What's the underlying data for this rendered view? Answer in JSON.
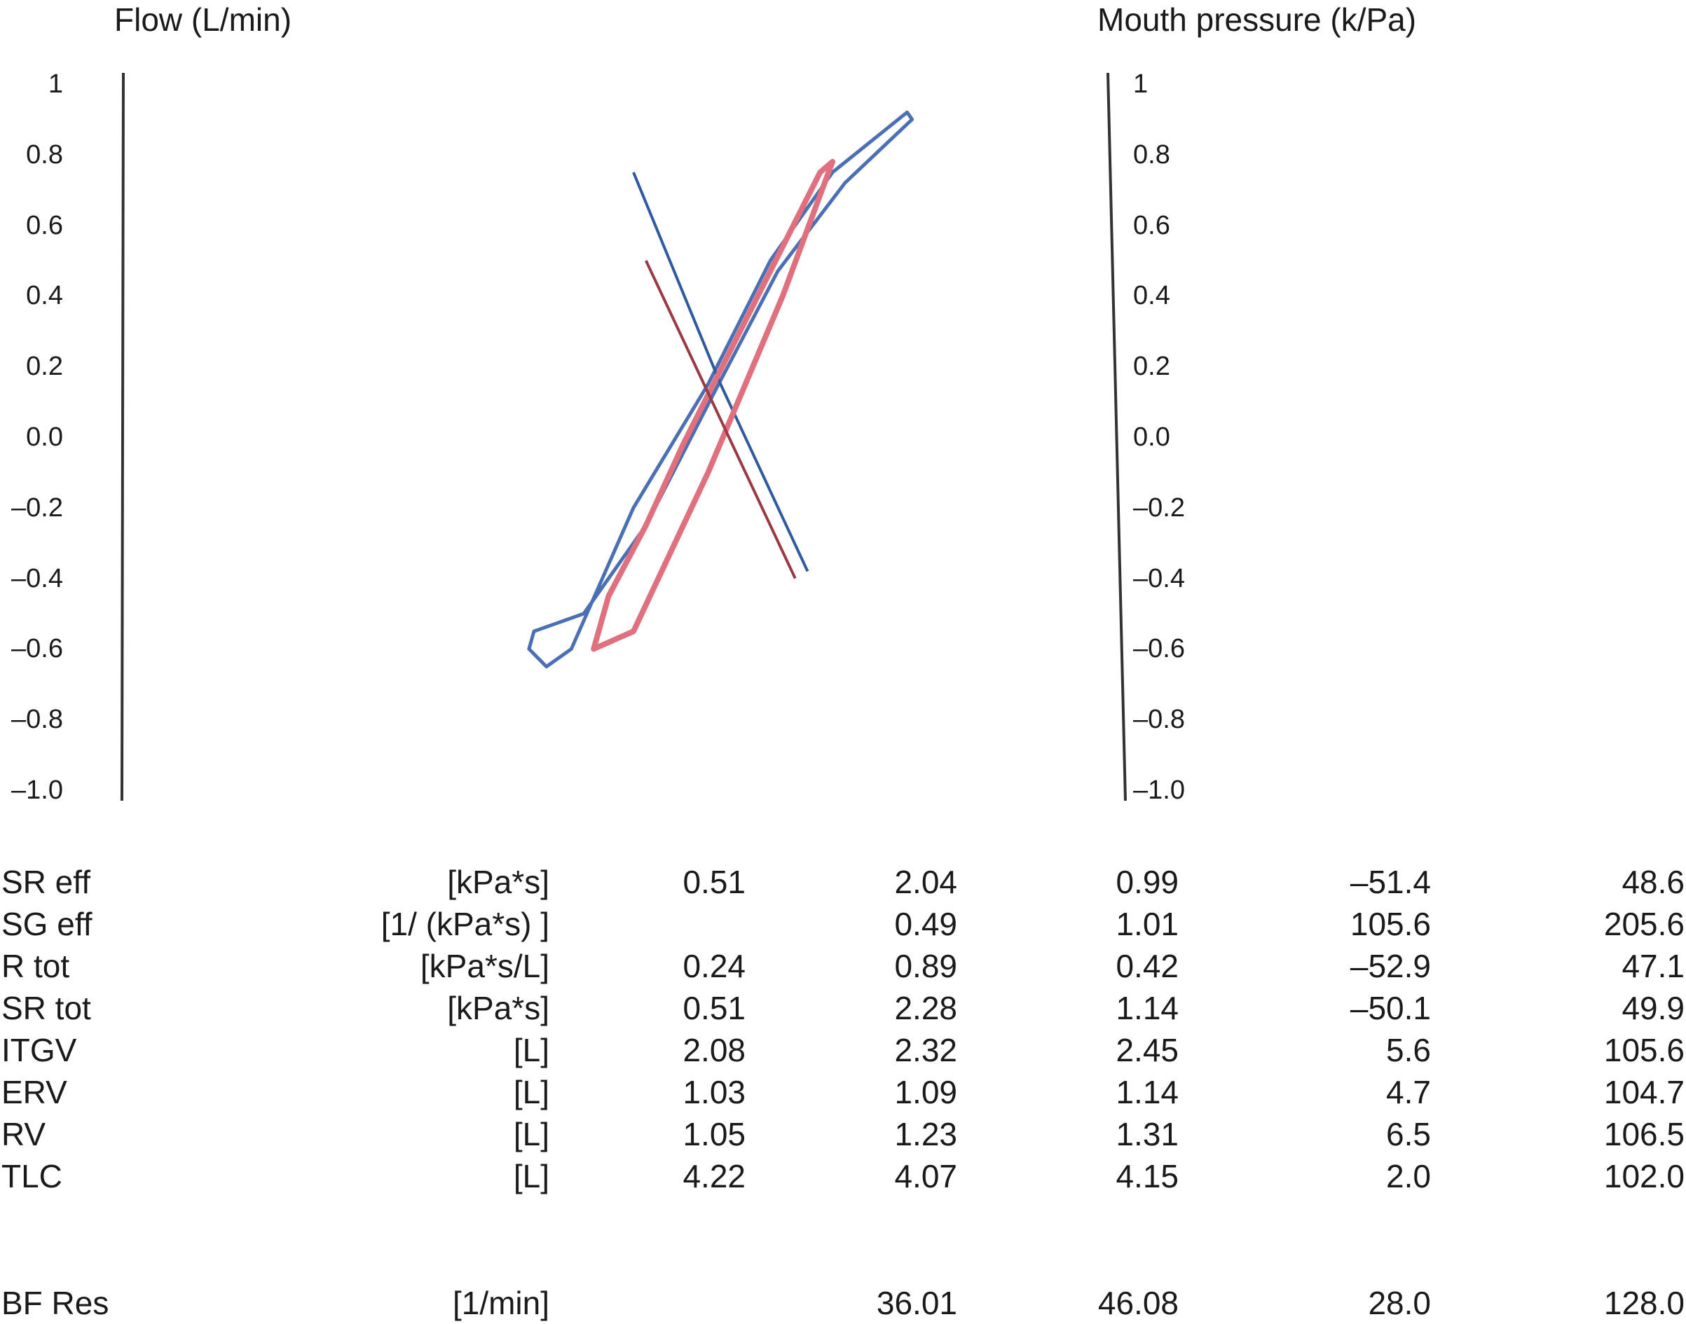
{
  "chart_data": {
    "type": "line",
    "left_axis": {
      "title": "Flow (L/min)",
      "ticks": [
        "1",
        "0.8",
        "0.6",
        "0.4",
        "0.2",
        "0.0",
        "–0.2",
        "–0.4",
        "–0.6",
        "–0.8",
        "–1.0"
      ],
      "ylim": [
        -1.0,
        1.0
      ]
    },
    "right_axis": {
      "title": "Mouth pressure (k/Pa)",
      "ticks": [
        "1",
        "0.8",
        "0.6",
        "0.4",
        "0.2",
        "0.0",
        "–0.2",
        "–0.4",
        "–0.6",
        "–0.8",
        "–1.0"
      ],
      "ylim": [
        -1.0,
        1.0
      ]
    },
    "series": [
      {
        "color": "#4a6fb5",
        "loop": [
          [
            -0.6,
            -0.55
          ],
          [
            -0.62,
            -0.6
          ],
          [
            -0.55,
            -0.65
          ],
          [
            -0.45,
            -0.6
          ],
          [
            -0.2,
            -0.2
          ],
          [
            0.1,
            0.15
          ],
          [
            0.35,
            0.5
          ],
          [
            0.6,
            0.75
          ],
          [
            0.9,
            0.92
          ],
          [
            0.92,
            0.9
          ],
          [
            0.65,
            0.72
          ],
          [
            0.38,
            0.47
          ],
          [
            0.12,
            0.12
          ],
          [
            -0.15,
            -0.25
          ],
          [
            -0.4,
            -0.5
          ],
          [
            -0.6,
            -0.55
          ]
        ],
        "line": [
          [
            -0.2,
            0.75
          ],
          [
            0.15,
            0.15
          ],
          [
            0.5,
            -0.38
          ]
        ]
      },
      {
        "color": "#e0707d",
        "loop": [
          [
            -0.3,
            -0.45
          ],
          [
            -0.36,
            -0.6
          ],
          [
            -0.2,
            -0.55
          ],
          [
            0.1,
            -0.1
          ],
          [
            0.4,
            0.4
          ],
          [
            0.6,
            0.78
          ],
          [
            0.55,
            0.75
          ],
          [
            0.3,
            0.4
          ],
          [
            0.0,
            -0.02
          ],
          [
            -0.15,
            -0.25
          ],
          [
            -0.3,
            -0.45
          ]
        ],
        "line": [
          [
            -0.15,
            0.5
          ],
          [
            0.15,
            0.05
          ],
          [
            0.45,
            -0.4
          ]
        ]
      }
    ]
  },
  "table": {
    "rows": [
      {
        "label": "SR eff",
        "unit": "[kPa*s]",
        "v1": "0.51",
        "v2": "2.04",
        "v3": "0.99",
        "v4": "–51.4",
        "v5": "48.6"
      },
      {
        "label": "SG eff",
        "unit": "[1/ (kPa*s) ]",
        "v1": "",
        "v2": "0.49",
        "v3": "1.01",
        "v4": "105.6",
        "v5": "205.6"
      },
      {
        "label": "R tot",
        "unit": "[kPa*s/L]",
        "v1": "0.24",
        "v2": "0.89",
        "v3": "0.42",
        "v4": "–52.9",
        "v5": "47.1"
      },
      {
        "label": "SR tot",
        "unit": "[kPa*s]",
        "v1": "0.51",
        "v2": "2.28",
        "v3": "1.14",
        "v4": "–50.1",
        "v5": "49.9"
      },
      {
        "label": "ITGV",
        "unit": "[L]",
        "v1": "2.08",
        "v2": "2.32",
        "v3": "2.45",
        "v4": "5.6",
        "v5": "105.6"
      },
      {
        "label": "ERV",
        "unit": "[L]",
        "v1": "1.03",
        "v2": "1.09",
        "v3": "1.14",
        "v4": "4.7",
        "v5": "104.7"
      },
      {
        "label": "RV",
        "unit": "[L]",
        "v1": "1.05",
        "v2": "1.23",
        "v3": "1.31",
        "v4": "6.5",
        "v5": "106.5"
      },
      {
        "label": "TLC",
        "unit": "[L]",
        "v1": "4.22",
        "v2": "4.07",
        "v3": "4.15",
        "v4": "2.0",
        "v5": "102.0"
      }
    ],
    "footer_row": {
      "label": "BF Res",
      "unit": "[1/min]",
      "v1": "",
      "v2": "36.01",
      "v3": "46.08",
      "v4": "28.0",
      "v5": "128.0"
    }
  }
}
